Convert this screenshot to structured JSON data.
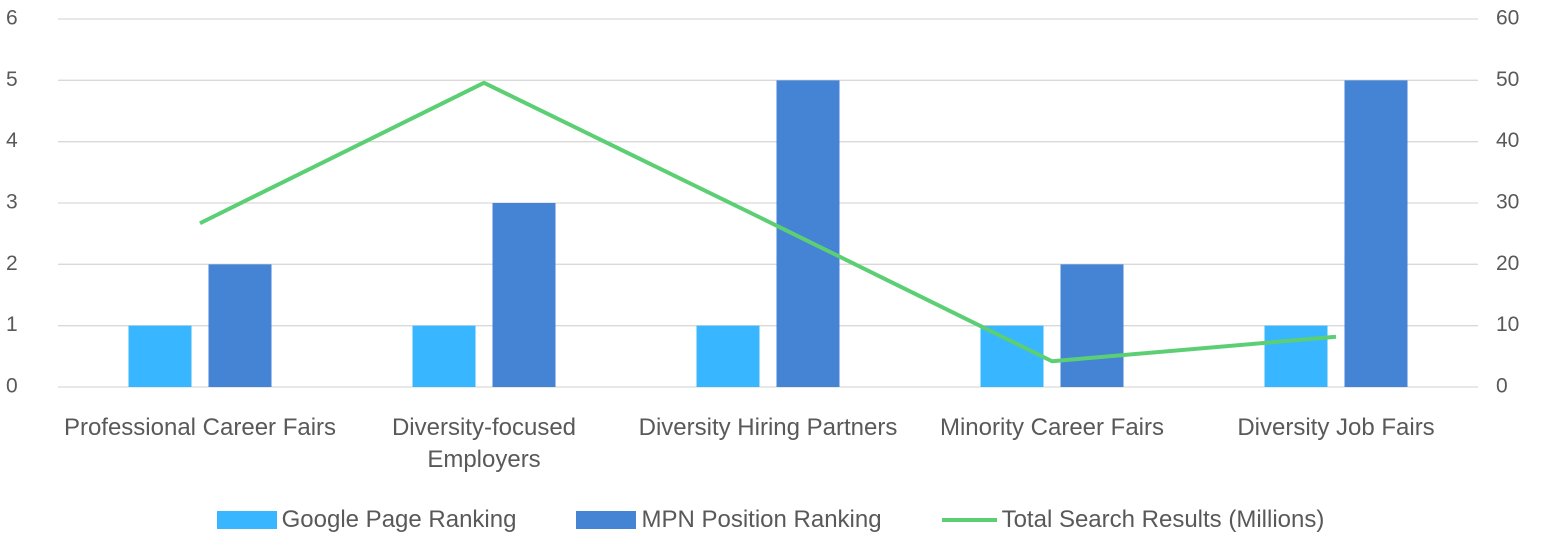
{
  "chart_data": {
    "type": "bar",
    "categories": [
      "Professional Career Fairs",
      "Diversity-focused Employers",
      "Diversity Hiring Partners",
      "Minority Career Fairs",
      "Diversity Job Fairs"
    ],
    "series": [
      {
        "name": "Google Page Ranking",
        "color": "#38b6ff",
        "type": "bar",
        "values": [
          1,
          1,
          1,
          1,
          1
        ]
      },
      {
        "name": "MPN Position Ranking",
        "color": "#4583d4",
        "type": "bar",
        "values": [
          2,
          3,
          5,
          2,
          5
        ]
      },
      {
        "name": "Total Search Results (Millions)",
        "color": "#5ccf74",
        "type": "line",
        "axis": "y2",
        "values": [
          26.7,
          49.6,
          27,
          4.2,
          8.2
        ]
      }
    ],
    "ylim": [
      0,
      6
    ],
    "yticks": [
      0,
      1,
      2,
      3,
      4,
      5,
      6
    ],
    "y2lim": [
      0,
      60
    ],
    "y2ticks": [
      0,
      10,
      20,
      30,
      40,
      50,
      60
    ],
    "grid": true,
    "legend": "bottom"
  }
}
